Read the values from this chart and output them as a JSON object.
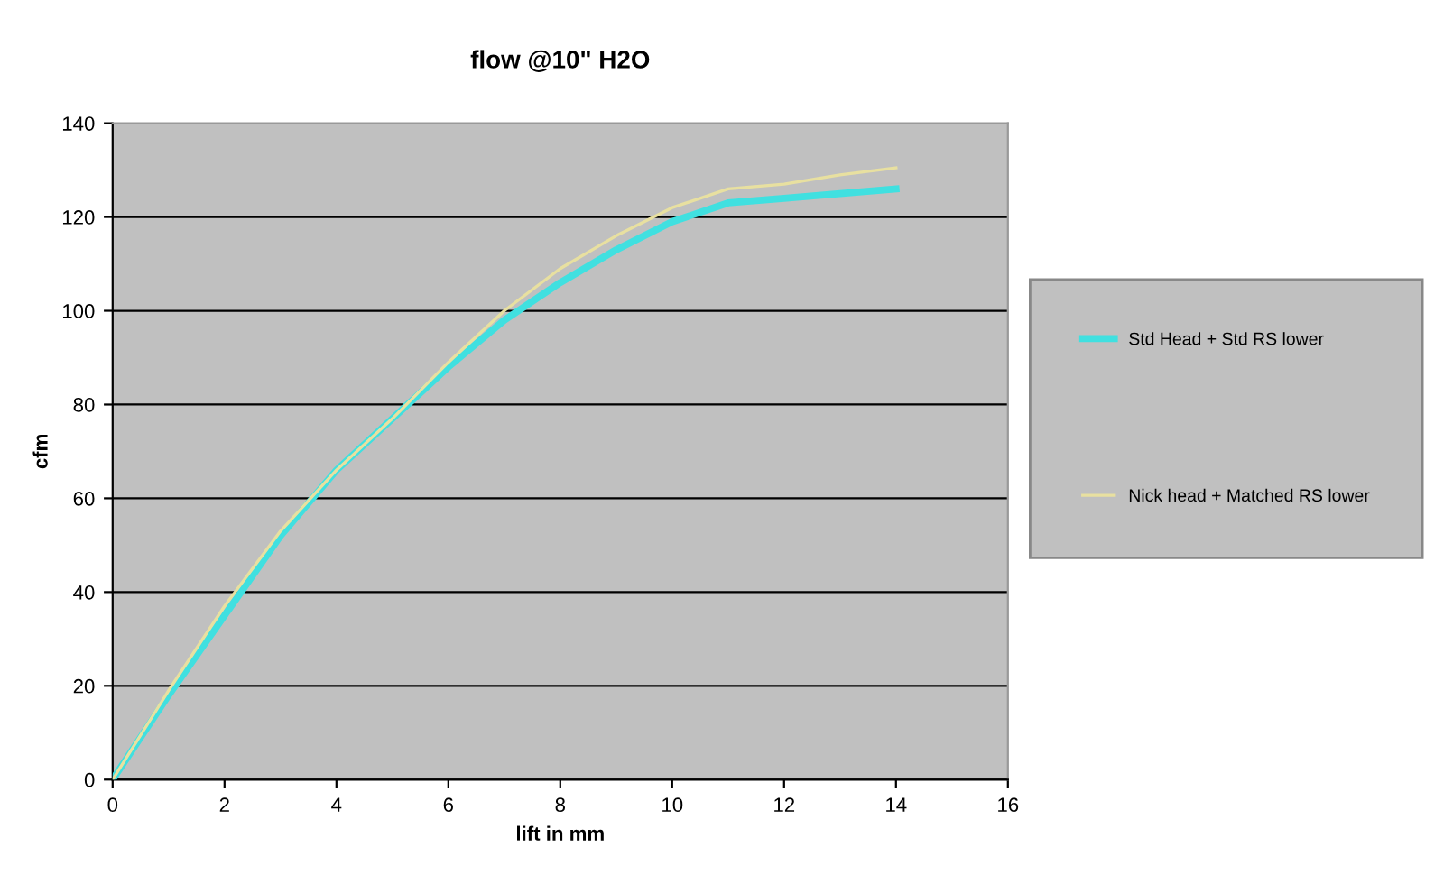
{
  "chart_data": {
    "type": "line",
    "title": "flow @10\" H2O",
    "xlabel": "lift in mm",
    "ylabel": "cfm",
    "x": [
      0,
      1,
      2,
      3,
      4,
      5,
      6,
      7,
      8,
      9,
      10,
      11,
      12,
      13,
      14
    ],
    "series": [
      {
        "name": "Std Head + Std RS lower",
        "color": "#40e0e0",
        "values": [
          0,
          18,
          35,
          52,
          66,
          77,
          88,
          98,
          106,
          113,
          119,
          123,
          124,
          125,
          126
        ]
      },
      {
        "name": "Nick head + Matched RS lower",
        "color": "#e8e0a0",
        "values": [
          0,
          19,
          37,
          53,
          66,
          77,
          89,
          100,
          109,
          116,
          122,
          126,
          127,
          129,
          130.5
        ]
      }
    ],
    "xlim": [
      0,
      16
    ],
    "xticks": [
      0,
      2,
      4,
      6,
      8,
      10,
      12,
      14,
      16
    ],
    "ylim": [
      0,
      140
    ],
    "yticks": [
      0,
      20,
      40,
      60,
      80,
      100,
      120,
      140
    ],
    "grid": "y",
    "legend": "right",
    "marker": "none",
    "line_style": "solid"
  }
}
